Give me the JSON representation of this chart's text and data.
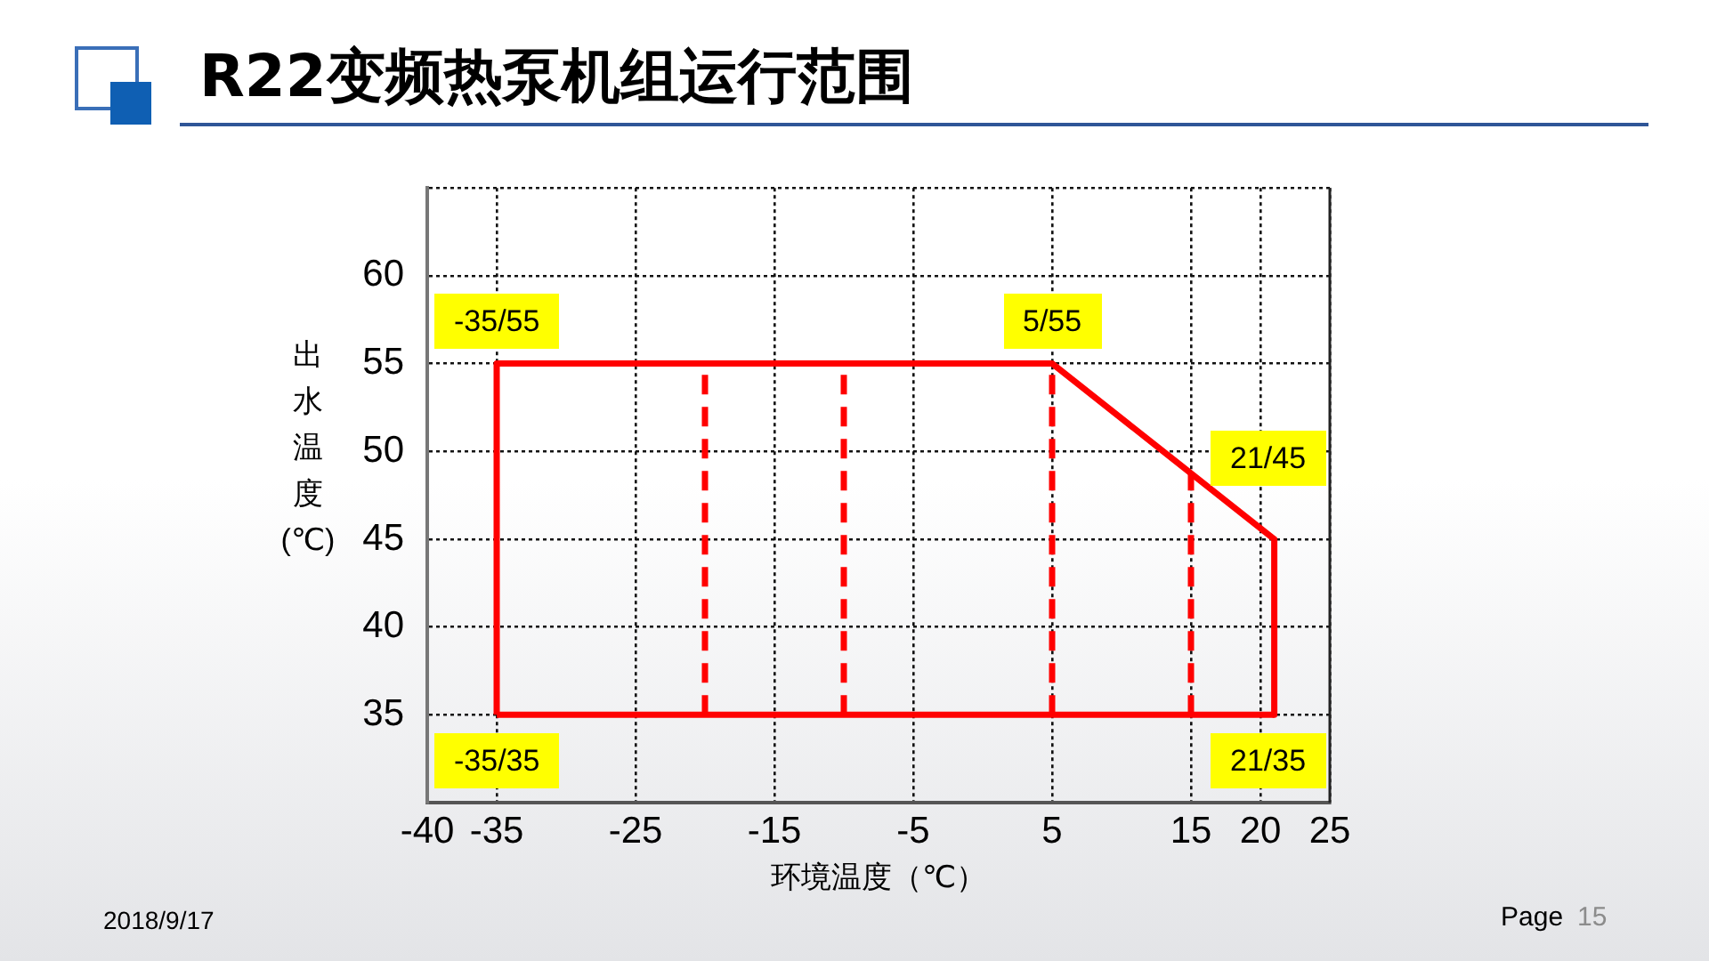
{
  "chart_data": {
    "type": "line",
    "title": "R22变频热泵机组运行范围",
    "xlabel": "环境温度（℃）",
    "ylabel": "出水温度(℃)",
    "annotations": [
      {
        "text": "-35/55",
        "x": -35,
        "y": 55
      },
      {
        "text": "5/55",
        "x": 5,
        "y": 55
      },
      {
        "text": "21/45",
        "x": 21,
        "y": 45
      },
      {
        "text": "-35/35",
        "x": -35,
        "y": 35
      },
      {
        "text": "21/35",
        "x": 21,
        "y": 35
      },
      "2018/9/17",
      "Page",
      "15"
    ],
    "series": [
      {
        "color": "#ff0000",
        "x": [
          -35,
          -35,
          5,
          21,
          21
        ],
        "values": [
          35,
          55,
          55,
          45,
          35
        ],
        "line_style": "solid"
      },
      {
        "color": "#ff0000",
        "x": [
          -35,
          21
        ],
        "values": [
          35,
          35
        ],
        "line_style": "solid"
      },
      {
        "color": "#ff0000",
        "x": [
          -20,
          -20
        ],
        "values": [
          35,
          55
        ],
        "line_style": "dashed"
      },
      {
        "color": "#ff0000",
        "x": [
          -10,
          -10
        ],
        "values": [
          35,
          55
        ],
        "line_style": "dashed"
      },
      {
        "color": "#ff0000",
        "x": [
          5,
          5
        ],
        "values": [
          35,
          55
        ],
        "line_style": "dashed"
      },
      {
        "color": "#ff0000",
        "x": [
          15,
          15
        ],
        "values": [
          35,
          48.8
        ],
        "line_style": "dashed"
      }
    ],
    "xlim": [
      -40,
      25
    ],
    "xticks": [
      -40,
      -35,
      -25,
      -15,
      -5,
      5,
      15,
      20,
      25
    ],
    "ylim": [
      30,
      65
    ],
    "yticks": [
      35,
      40,
      45,
      50,
      55,
      60,
      {
        "value": 65,
        "label": null
      }
    ],
    "grid": true,
    "legend": false,
    "marker": "none"
  }
}
